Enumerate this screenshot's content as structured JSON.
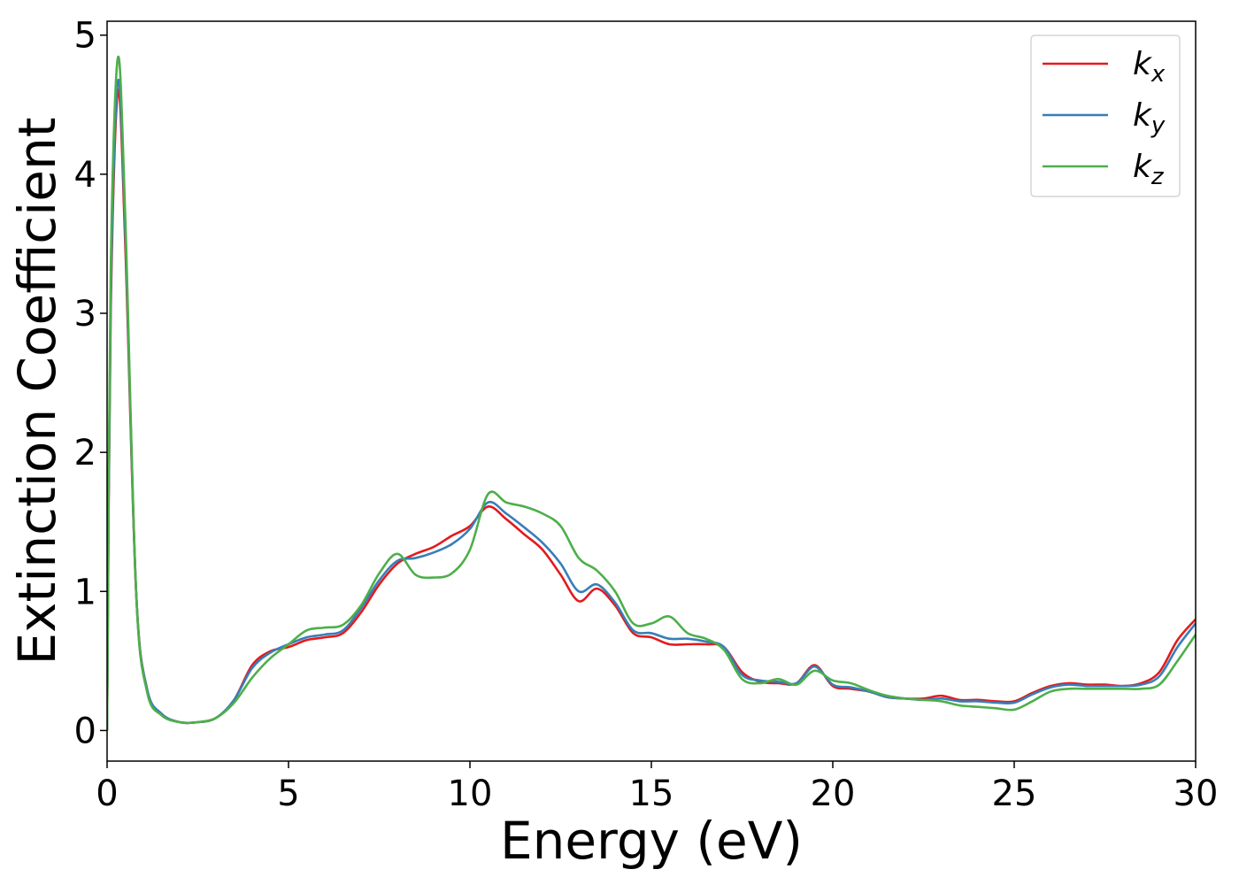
{
  "chart_data": {
    "type": "line",
    "title": "",
    "xlabel": "Energy (eV)",
    "ylabel": "Extinction Coefficient",
    "xlim": [
      0,
      30
    ],
    "ylim": [
      -0.22,
      5.1
    ],
    "xticks": [
      0,
      5,
      10,
      15,
      20,
      25,
      30
    ],
    "yticks": [
      0,
      1,
      2,
      3,
      4,
      5
    ],
    "grid": false,
    "legend_position": "top-right",
    "series": [
      {
        "name": "k",
        "subscript": "x",
        "color": "#e41a1c",
        "points": [
          [
            0,
            0
          ],
          [
            0.1,
            3.0
          ],
          [
            0.3,
            4.6
          ],
          [
            0.5,
            3.5
          ],
          [
            0.8,
            1.0
          ],
          [
            1.1,
            0.3
          ],
          [
            1.5,
            0.12
          ],
          [
            2.0,
            0.06
          ],
          [
            2.5,
            0.06
          ],
          [
            3.0,
            0.09
          ],
          [
            3.5,
            0.22
          ],
          [
            4.0,
            0.47
          ],
          [
            4.5,
            0.57
          ],
          [
            5.0,
            0.6
          ],
          [
            5.5,
            0.65
          ],
          [
            6.0,
            0.67
          ],
          [
            6.5,
            0.7
          ],
          [
            7.0,
            0.85
          ],
          [
            7.5,
            1.05
          ],
          [
            8.0,
            1.2
          ],
          [
            8.5,
            1.27
          ],
          [
            9.0,
            1.32
          ],
          [
            9.5,
            1.4
          ],
          [
            10.0,
            1.47
          ],
          [
            10.5,
            1.61
          ],
          [
            11.0,
            1.52
          ],
          [
            11.5,
            1.41
          ],
          [
            12.0,
            1.3
          ],
          [
            12.5,
            1.12
          ],
          [
            13.0,
            0.93
          ],
          [
            13.5,
            1.02
          ],
          [
            14.0,
            0.9
          ],
          [
            14.5,
            0.7
          ],
          [
            15.0,
            0.67
          ],
          [
            15.5,
            0.62
          ],
          [
            16.0,
            0.62
          ],
          [
            16.5,
            0.62
          ],
          [
            17.0,
            0.6
          ],
          [
            17.5,
            0.42
          ],
          [
            18.0,
            0.35
          ],
          [
            18.5,
            0.34
          ],
          [
            19.0,
            0.34
          ],
          [
            19.5,
            0.47
          ],
          [
            20.0,
            0.32
          ],
          [
            20.5,
            0.3
          ],
          [
            21.0,
            0.28
          ],
          [
            21.5,
            0.24
          ],
          [
            22.0,
            0.23
          ],
          [
            22.5,
            0.23
          ],
          [
            23.0,
            0.25
          ],
          [
            23.5,
            0.22
          ],
          [
            24.0,
            0.22
          ],
          [
            24.5,
            0.21
          ],
          [
            25.0,
            0.21
          ],
          [
            25.5,
            0.27
          ],
          [
            26.0,
            0.32
          ],
          [
            26.5,
            0.34
          ],
          [
            27.0,
            0.33
          ],
          [
            27.5,
            0.33
          ],
          [
            28.0,
            0.32
          ],
          [
            28.5,
            0.34
          ],
          [
            29.0,
            0.42
          ],
          [
            29.5,
            0.65
          ],
          [
            30.0,
            0.8
          ]
        ]
      },
      {
        "name": "k",
        "subscript": "y",
        "color": "#377eb8",
        "points": [
          [
            0,
            0
          ],
          [
            0.1,
            3.1
          ],
          [
            0.3,
            4.67
          ],
          [
            0.5,
            3.6
          ],
          [
            0.8,
            1.0
          ],
          [
            1.1,
            0.3
          ],
          [
            1.5,
            0.12
          ],
          [
            2.0,
            0.06
          ],
          [
            2.5,
            0.06
          ],
          [
            3.0,
            0.09
          ],
          [
            3.5,
            0.22
          ],
          [
            4.0,
            0.45
          ],
          [
            4.5,
            0.56
          ],
          [
            5.0,
            0.62
          ],
          [
            5.5,
            0.67
          ],
          [
            6.0,
            0.69
          ],
          [
            6.5,
            0.72
          ],
          [
            7.0,
            0.88
          ],
          [
            7.5,
            1.08
          ],
          [
            8.0,
            1.22
          ],
          [
            8.5,
            1.24
          ],
          [
            9.0,
            1.28
          ],
          [
            9.5,
            1.34
          ],
          [
            10.0,
            1.45
          ],
          [
            10.5,
            1.64
          ],
          [
            11.0,
            1.56
          ],
          [
            11.5,
            1.46
          ],
          [
            12.0,
            1.35
          ],
          [
            12.5,
            1.2
          ],
          [
            13.0,
            1.0
          ],
          [
            13.5,
            1.05
          ],
          [
            14.0,
            0.92
          ],
          [
            14.5,
            0.72
          ],
          [
            15.0,
            0.7
          ],
          [
            15.5,
            0.66
          ],
          [
            16.0,
            0.66
          ],
          [
            16.5,
            0.64
          ],
          [
            17.0,
            0.6
          ],
          [
            17.5,
            0.4
          ],
          [
            18.0,
            0.36
          ],
          [
            18.5,
            0.35
          ],
          [
            19.0,
            0.34
          ],
          [
            19.5,
            0.46
          ],
          [
            20.0,
            0.33
          ],
          [
            20.5,
            0.31
          ],
          [
            21.0,
            0.28
          ],
          [
            21.5,
            0.24
          ],
          [
            22.0,
            0.23
          ],
          [
            22.5,
            0.22
          ],
          [
            23.0,
            0.23
          ],
          [
            23.5,
            0.21
          ],
          [
            24.0,
            0.21
          ],
          [
            24.5,
            0.2
          ],
          [
            25.0,
            0.2
          ],
          [
            25.5,
            0.26
          ],
          [
            26.0,
            0.31
          ],
          [
            26.5,
            0.33
          ],
          [
            27.0,
            0.32
          ],
          [
            27.5,
            0.32
          ],
          [
            28.0,
            0.32
          ],
          [
            28.5,
            0.33
          ],
          [
            29.0,
            0.39
          ],
          [
            29.5,
            0.6
          ],
          [
            30.0,
            0.77
          ]
        ]
      },
      {
        "name": "k",
        "subscript": "z",
        "color": "#4daf4a",
        "points": [
          [
            0,
            0
          ],
          [
            0.1,
            3.3
          ],
          [
            0.3,
            4.84
          ],
          [
            0.5,
            3.7
          ],
          [
            0.8,
            1.0
          ],
          [
            1.1,
            0.28
          ],
          [
            1.5,
            0.11
          ],
          [
            2.0,
            0.06
          ],
          [
            2.5,
            0.06
          ],
          [
            3.0,
            0.09
          ],
          [
            3.5,
            0.2
          ],
          [
            4.0,
            0.38
          ],
          [
            4.5,
            0.52
          ],
          [
            5.0,
            0.62
          ],
          [
            5.5,
            0.72
          ],
          [
            6.0,
            0.74
          ],
          [
            6.5,
            0.76
          ],
          [
            7.0,
            0.9
          ],
          [
            7.5,
            1.13
          ],
          [
            8.0,
            1.27
          ],
          [
            8.5,
            1.12
          ],
          [
            9.0,
            1.1
          ],
          [
            9.5,
            1.13
          ],
          [
            10.0,
            1.3
          ],
          [
            10.5,
            1.7
          ],
          [
            11.0,
            1.64
          ],
          [
            11.5,
            1.61
          ],
          [
            12.0,
            1.56
          ],
          [
            12.5,
            1.47
          ],
          [
            13.0,
            1.24
          ],
          [
            13.5,
            1.15
          ],
          [
            14.0,
            1.0
          ],
          [
            14.5,
            0.77
          ],
          [
            15.0,
            0.77
          ],
          [
            15.5,
            0.82
          ],
          [
            16.0,
            0.7
          ],
          [
            16.5,
            0.66
          ],
          [
            17.0,
            0.58
          ],
          [
            17.5,
            0.37
          ],
          [
            18.0,
            0.34
          ],
          [
            18.5,
            0.37
          ],
          [
            19.0,
            0.33
          ],
          [
            19.5,
            0.43
          ],
          [
            20.0,
            0.36
          ],
          [
            20.5,
            0.34
          ],
          [
            21.0,
            0.29
          ],
          [
            21.5,
            0.25
          ],
          [
            22.0,
            0.23
          ],
          [
            22.5,
            0.22
          ],
          [
            23.0,
            0.21
          ],
          [
            23.5,
            0.18
          ],
          [
            24.0,
            0.17
          ],
          [
            24.5,
            0.16
          ],
          [
            25.0,
            0.15
          ],
          [
            25.5,
            0.21
          ],
          [
            26.0,
            0.28
          ],
          [
            26.5,
            0.3
          ],
          [
            27.0,
            0.3
          ],
          [
            27.5,
            0.3
          ],
          [
            28.0,
            0.3
          ],
          [
            28.5,
            0.3
          ],
          [
            29.0,
            0.33
          ],
          [
            29.5,
            0.5
          ],
          [
            30.0,
            0.69
          ]
        ]
      }
    ]
  }
}
